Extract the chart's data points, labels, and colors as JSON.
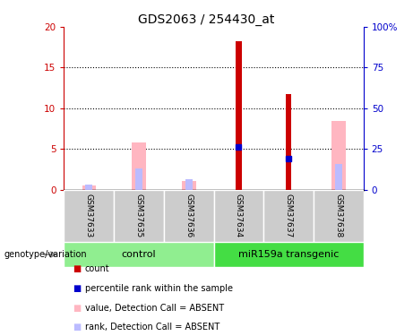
{
  "title": "GDS2063 / 254430_at",
  "samples": [
    "GSM37633",
    "GSM37635",
    "GSM37636",
    "GSM37634",
    "GSM37637",
    "GSM37638"
  ],
  "count_values": [
    0,
    0,
    0,
    18.2,
    11.7,
    0
  ],
  "percentile_rank_values": [
    0,
    0,
    0,
    5.3,
    3.8,
    0
  ],
  "absent_value_values": [
    0.5,
    5.8,
    1.1,
    0,
    0,
    8.5
  ],
  "absent_rank_values": [
    0.7,
    2.6,
    1.3,
    0,
    0,
    3.2
  ],
  "ylim_left": [
    0,
    20
  ],
  "ylim_right": [
    0,
    100
  ],
  "yticks_left": [
    0,
    5,
    10,
    15,
    20
  ],
  "ytick_labels_left": [
    "0",
    "5",
    "10",
    "15",
    "20"
  ],
  "yticks_right": [
    0,
    25,
    50,
    75,
    100
  ],
  "ytick_labels_right": [
    "0",
    "25",
    "50",
    "75",
    "100%"
  ],
  "count_color": "#CC0000",
  "percentile_color": "#0000CC",
  "absent_value_color": "#FFB6C1",
  "absent_rank_color": "#BBBBFF",
  "left_axis_color": "#CC0000",
  "right_axis_color": "#0000CC",
  "bg_label": "#CCCCCC",
  "bg_control": "#90EE90",
  "bg_transgenic": "#44DD44",
  "absent_bar_width": 0.28,
  "rank_bar_width": 0.15,
  "count_bar_width": 0.12
}
